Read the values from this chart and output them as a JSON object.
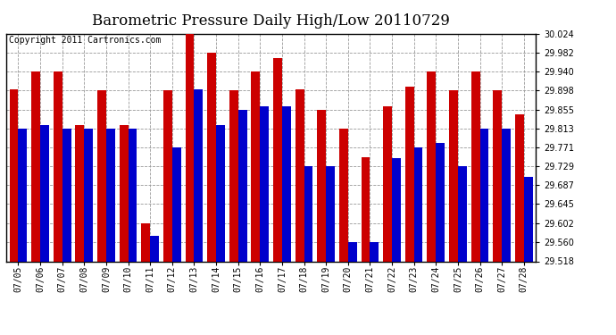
{
  "title": "Barometric Pressure Daily High/Low 20110729",
  "copyright": "Copyright 2011 Cartronics.com",
  "background_color": "#ffffff",
  "plot_bg_color": "#ffffff",
  "bar_width": 0.4,
  "dates": [
    "07/05",
    "07/06",
    "07/07",
    "07/08",
    "07/09",
    "07/10",
    "07/11",
    "07/12",
    "07/13",
    "07/14",
    "07/15",
    "07/16",
    "07/17",
    "07/18",
    "07/19",
    "07/20",
    "07/21",
    "07/22",
    "07/23",
    "07/24",
    "07/25",
    "07/26",
    "07/27",
    "07/28"
  ],
  "highs": [
    29.9,
    29.94,
    29.94,
    29.82,
    29.898,
    29.82,
    29.602,
    29.898,
    30.024,
    29.982,
    29.898,
    29.94,
    29.97,
    29.9,
    29.855,
    29.813,
    29.75,
    29.862,
    29.905,
    29.94,
    29.898,
    29.94,
    29.898,
    29.845
  ],
  "lows": [
    29.813,
    29.82,
    29.813,
    29.813,
    29.813,
    29.813,
    29.575,
    29.771,
    29.9,
    29.82,
    29.855,
    29.862,
    29.862,
    29.729,
    29.729,
    29.56,
    29.56,
    29.748,
    29.771,
    29.78,
    29.729,
    29.813,
    29.813,
    29.705
  ],
  "high_color": "#cc0000",
  "low_color": "#0000cc",
  "ylim_min": 29.518,
  "ylim_max": 30.024,
  "yticks": [
    29.518,
    29.56,
    29.602,
    29.645,
    29.687,
    29.729,
    29.771,
    29.813,
    29.855,
    29.898,
    29.94,
    29.982,
    30.024
  ],
  "grid_color": "#999999",
  "title_fontsize": 12,
  "tick_fontsize": 7,
  "copyright_fontsize": 7
}
